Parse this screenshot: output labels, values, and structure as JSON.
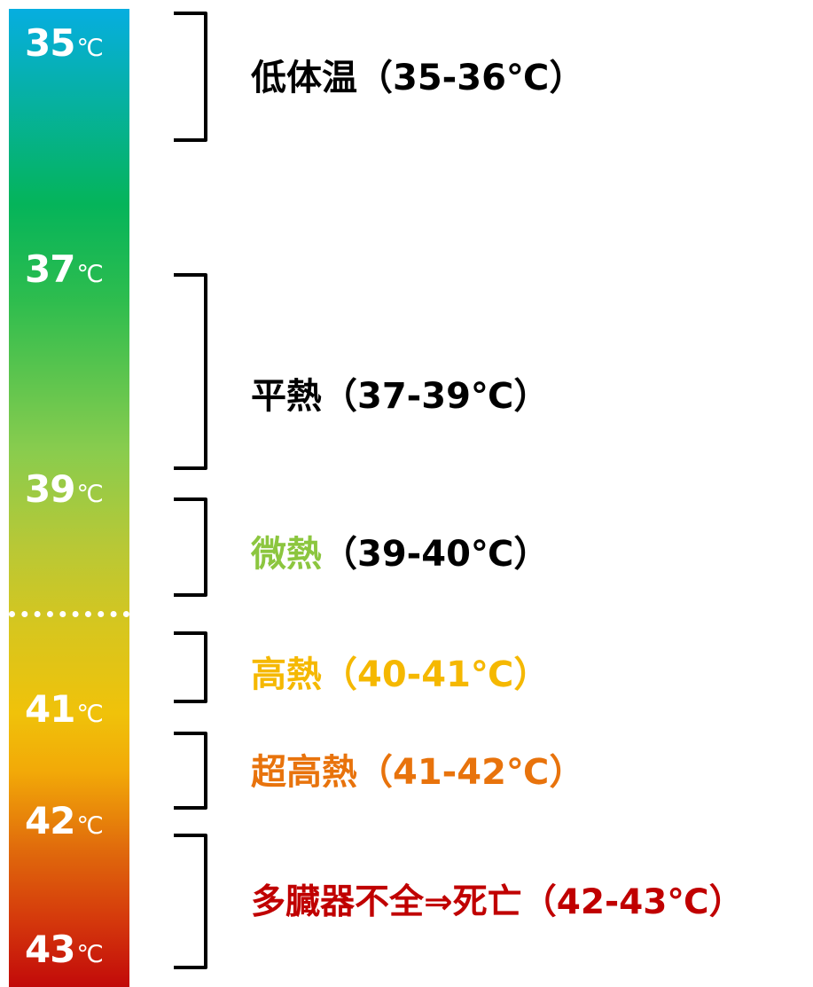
{
  "scale": {
    "ticks": [
      {
        "value": "35",
        "unit": "℃"
      },
      {
        "value": "37",
        "unit": "℃"
      },
      {
        "value": "39",
        "unit": "℃"
      },
      {
        "value": "41",
        "unit": "℃"
      },
      {
        "value": "42",
        "unit": "℃"
      },
      {
        "value": "43",
        "unit": "℃"
      }
    ],
    "gradient_colors": [
      "#06aee0",
      "#05b45a",
      "#88cc4e",
      "#d6c61f",
      "#f0c20a",
      "#e06a0c",
      "#c20a0a"
    ]
  },
  "ranges": [
    {
      "name": "低体温",
      "range": "（35-36℃）",
      "name_color": "#000000",
      "range_color": "#000000"
    },
    {
      "name": "平熱",
      "range": "（37-39℃）",
      "name_color": "#000000",
      "range_color": "#000000"
    },
    {
      "name": "微熱",
      "range": "（39-40℃）",
      "name_color": "#8cc63f",
      "range_color": "#000000"
    },
    {
      "name": "高熱",
      "range": "（40-41℃）",
      "name_color": "#f5b800",
      "range_color": "#f5b800"
    },
    {
      "name": "超高熱",
      "range": "（41-42℃）",
      "name_color": "#e8730c",
      "range_color": "#e8730c"
    },
    {
      "name": "多臓器不全⇒死亡",
      "range": "（42-43℃）",
      "name_color": "#c00000",
      "range_color": "#c00000"
    }
  ]
}
